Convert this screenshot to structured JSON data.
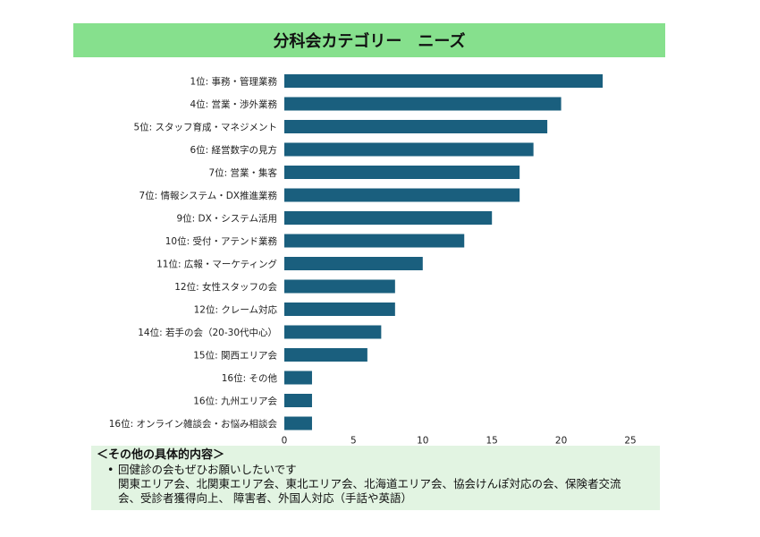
{
  "header": {
    "title": "分科会カテゴリー　ニーズ"
  },
  "chart_data": {
    "type": "bar",
    "orientation": "horizontal",
    "categories": [
      "1位: 事務・管理業務",
      "4位: 営業・渉外業務",
      "5位: スタッフ育成・マネジメント",
      "6位: 経営数字の見方",
      "7位: 営業・集客",
      "7位: 情報システム・DX推進業務",
      "9位: DX・システム活用",
      "10位: 受付・アテンド業務",
      "11位: 広報・マーケティング",
      "12位: 女性スタッフの会",
      "12位: クレーム対応",
      "14位: 若手の会（20-30代中心）",
      "15位: 関西エリア会",
      "16位: その他",
      "16位: 九州エリア会",
      "16位: オンライン雑談会・お悩み相談会"
    ],
    "values": [
      23,
      20,
      19,
      18,
      17,
      17,
      15,
      13,
      10,
      8,
      8,
      7,
      6,
      2,
      2,
      2
    ],
    "xlim": [
      0,
      25
    ],
    "xticks": [
      0,
      5,
      10,
      15,
      20,
      25
    ],
    "bar_color": "#1a5f7e",
    "grid": false,
    "title": "",
    "xlabel": "",
    "ylabel": ""
  },
  "notes": {
    "heading": "＜その他の具体的内容＞",
    "items": [
      {
        "lines": [
          "回健診の会もぜひお願いしたいです",
          "関東エリア会、北関東エリア会、東北エリア会、北海道エリア会、協会けんぽ対応の会、保険者交流",
          "会、受診者獲得向上、 障害者、外国人対応（手話や英語）"
        ]
      }
    ]
  },
  "colors": {
    "banner": "#86e08d",
    "notes_bg": "#e2f4e2",
    "bar": "#1a5f7e"
  }
}
